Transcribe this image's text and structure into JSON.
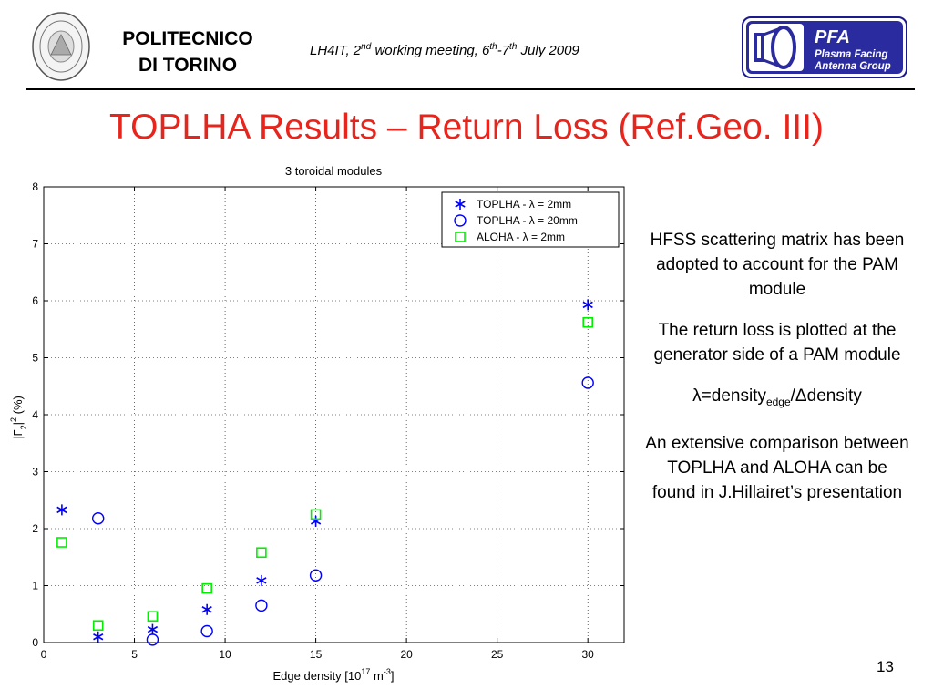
{
  "header": {
    "institution_line1": "POLITECNICO",
    "institution_line2": "DI TORINO",
    "meeting_prefix": "LH4IT, 2",
    "meeting_sup1": "nd",
    "meeting_mid": " working meeting, 6",
    "meeting_sup2": "th",
    "meeting_dash": "-7",
    "meeting_sup3": "th",
    "meeting_suffix": " July 2009",
    "pfa_title": "PFA",
    "pfa_line1": "Plasma Facing",
    "pfa_line2": "Antenna Group"
  },
  "slide_title": "TOPLHA Results – Return Loss (Ref.Geo. III)",
  "bullets": {
    "b1": "HFSS scattering matrix has been adopted to account for the PAM module",
    "b2": "The return loss is plotted at the generator side of a PAM module",
    "b3_pre": "λ=density",
    "b3_sub": "edge",
    "b3_post": "/Δdensity",
    "b4": "An extensive comparison between TOPLHA and ALOHA can be found in J.Hillairet’s presentation"
  },
  "page_number": "13",
  "colors": {
    "title": "#e8251c",
    "toplha": "#0000ff",
    "aloha": "#00ee00"
  },
  "chart_data": {
    "type": "scatter",
    "title": "3 toroidal modules",
    "xlabel_main": "Edge density [10",
    "xlabel_sup": "17",
    "xlabel_unit": " m",
    "xlabel_unit_sup": "-3",
    "xlabel_end": "]",
    "ylabel_pre": "|Γ",
    "ylabel_sub": "2",
    "ylabel_mid": "|",
    "ylabel_sup": "2",
    "ylabel_post": " (%)",
    "x_ticks": [
      "0",
      "5",
      "10",
      "15",
      "20",
      "25",
      "30"
    ],
    "y_ticks": [
      "0",
      "1",
      "2",
      "3",
      "4",
      "5",
      "6",
      "7",
      "8"
    ],
    "xlim": [
      0,
      32
    ],
    "ylim": [
      0,
      8
    ],
    "grid": true,
    "legend_position": "top-right",
    "series": [
      {
        "name": "TOPLHA - λ = 2mm",
        "marker": "star",
        "color": "#0000ff",
        "x": [
          1,
          3,
          6,
          9,
          12,
          15,
          30
        ],
        "y": [
          2.33,
          0.1,
          0.23,
          0.58,
          1.09,
          2.13,
          5.93
        ]
      },
      {
        "name": "TOPLHA - λ = 20mm",
        "marker": "circle",
        "color": "#0000ff",
        "x": [
          3,
          6,
          9,
          12,
          15,
          30
        ],
        "y": [
          2.18,
          0.05,
          0.2,
          0.65,
          1.18,
          4.56
        ]
      },
      {
        "name": "ALOHA  - λ = 2mm",
        "marker": "square",
        "color": "#00ee00",
        "x": [
          1,
          3,
          6,
          9,
          12,
          15,
          30
        ],
        "y": [
          1.76,
          0.3,
          0.46,
          0.95,
          1.58,
          2.25,
          5.62
        ]
      }
    ]
  }
}
